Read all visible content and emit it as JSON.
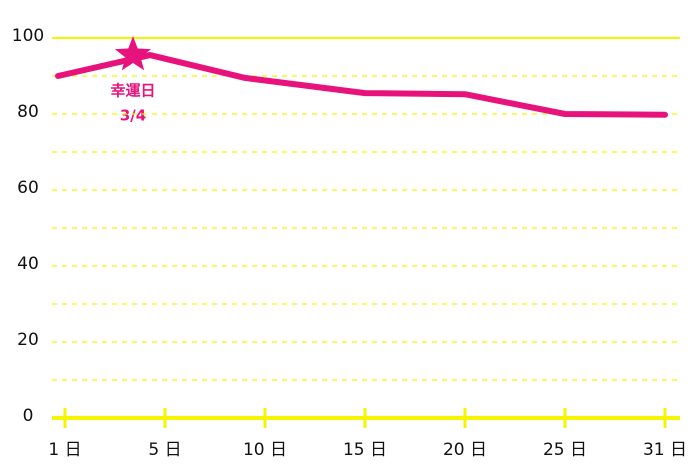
{
  "chart_data": {
    "type": "line",
    "categories": [
      "1 日",
      "5 日",
      "10 日",
      "15 日",
      "20 日",
      "25 日",
      "31 日"
    ],
    "values": [
      90,
      95.5,
      89.5,
      85.5,
      85.2,
      80,
      79.8
    ],
    "color": "#e8127c",
    "axis_color": "#f5f500",
    "ylim": [
      0,
      100
    ],
    "yticks": [
      0,
      20,
      40,
      60,
      80,
      100
    ],
    "grid": true,
    "annotation": {
      "label": "幸運日",
      "date": "3/4",
      "value": 95
    }
  }
}
